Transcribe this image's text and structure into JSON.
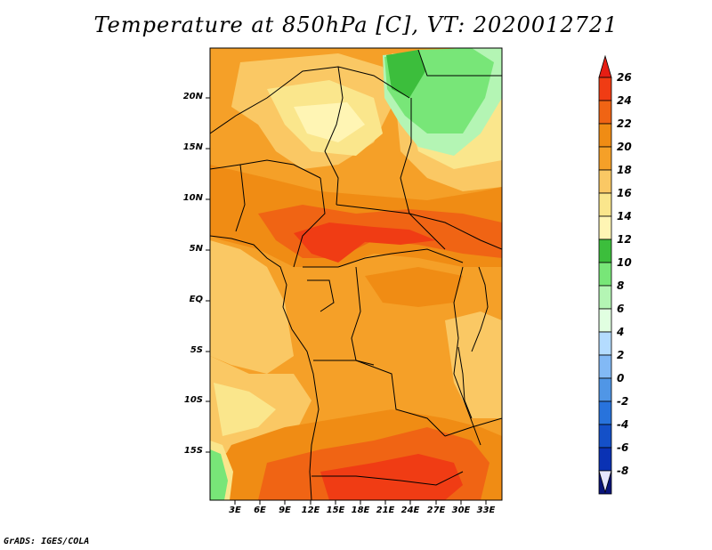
{
  "title": "Temperature at 850hPa [C], VT: 2020012721",
  "credit": "GrADS: IGES/COLA",
  "y_axis_labels": [
    "20N",
    "15N",
    "10N",
    "5N",
    "EQ",
    "5S",
    "10S",
    "15S"
  ],
  "x_axis_labels": [
    "3E",
    "6E",
    "9E",
    "12E",
    "15E",
    "18E",
    "21E",
    "24E",
    "27E",
    "30E",
    "33E"
  ],
  "colorbar": {
    "labels": [
      "26",
      "24",
      "22",
      "20",
      "18",
      "16",
      "14",
      "12",
      "10",
      "8",
      "6",
      "4",
      "2",
      "0",
      "-2",
      "-4",
      "-6",
      "-8"
    ],
    "colors": [
      "#f03c14",
      "#f06414",
      "#f08c14",
      "#f5a028",
      "#fac864",
      "#fae68c",
      "#fff5b4",
      "#3cbe3c",
      "#78e678",
      "#b4f5b4",
      "#e1ffe1",
      "#b4dcff",
      "#82b9f5",
      "#5096e6",
      "#2873dc",
      "#1450c8",
      "#0a32b4",
      "#0a147a"
    ],
    "top_arrow_color": "#e61e14",
    "bottom_arrow_color": "#e6e6ff"
  },
  "palette": {
    "t14_16": "#fff5b4",
    "t16_18": "#fae68c",
    "t18_20": "#fac864",
    "t20_22": "#f5a028",
    "t22_24": "#f08c14",
    "t24_26": "#f06414",
    "t26_plus": "#f03c14",
    "t8_10": "#b4f5b4",
    "t10_12": "#78e678",
    "t12_14": "#3cbe3c"
  }
}
